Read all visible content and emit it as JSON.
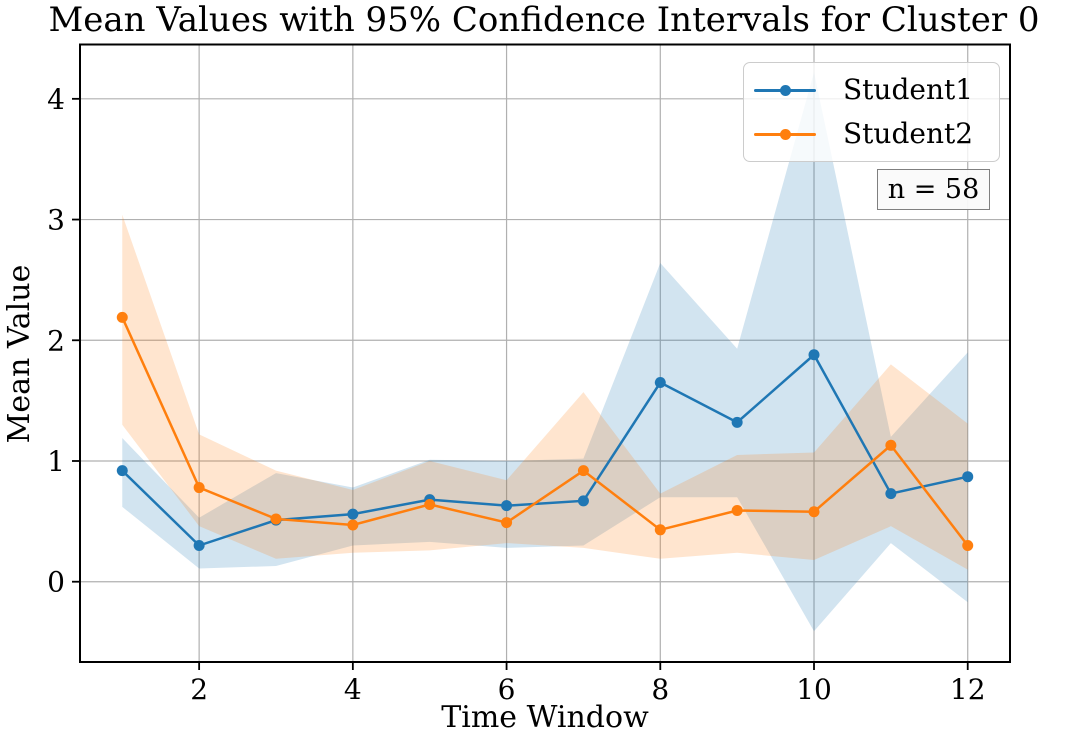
{
  "chart_data": {
    "type": "line",
    "title": "Mean Values with 95% Confidence Intervals for Cluster 0",
    "xlabel": "Time Window",
    "ylabel": "Mean Value",
    "annotation": "n = 58",
    "x": [
      1,
      2,
      3,
      4,
      5,
      6,
      7,
      8,
      9,
      10,
      11,
      12
    ],
    "xticks": [
      2,
      4,
      6,
      8,
      10,
      12
    ],
    "yticks": [
      0,
      1,
      2,
      3,
      4
    ],
    "xlim": [
      0.45,
      12.55
    ],
    "ylim": [
      -0.665,
      4.45
    ],
    "grid": true,
    "legend_position": "upper right",
    "band_alpha": 0.2,
    "series": [
      {
        "name": "Student1",
        "color": "#1f77b4",
        "mean": [
          0.92,
          0.3,
          0.51,
          0.56,
          0.68,
          0.63,
          0.67,
          1.65,
          1.32,
          1.88,
          0.73,
          0.87
        ],
        "ci_upper": [
          1.19,
          0.53,
          0.9,
          0.78,
          1.01,
          1.0,
          1.02,
          2.64,
          1.93,
          4.22,
          1.2,
          1.9
        ],
        "ci_lower": [
          0.62,
          0.11,
          0.13,
          0.3,
          0.33,
          0.28,
          0.3,
          0.7,
          0.7,
          -0.41,
          0.32,
          -0.17
        ]
      },
      {
        "name": "Student2",
        "color": "#ff7f0e",
        "mean": [
          2.19,
          0.78,
          0.52,
          0.47,
          0.64,
          0.49,
          0.92,
          0.43,
          0.59,
          0.58,
          1.13,
          0.3
        ],
        "ci_upper": [
          3.04,
          1.22,
          0.92,
          0.76,
          1.0,
          0.84,
          1.57,
          0.73,
          1.05,
          1.07,
          1.8,
          1.31
        ],
        "ci_lower": [
          1.3,
          0.46,
          0.19,
          0.24,
          0.26,
          0.32,
          0.28,
          0.19,
          0.24,
          0.18,
          0.46,
          0.1
        ]
      }
    ],
    "colors": {
      "grid": "#b0b0b0",
      "spine": "#000000",
      "background": "#ffffff",
      "legend_border": "#cccccc",
      "annotation_border": "#7f7f7f"
    }
  }
}
